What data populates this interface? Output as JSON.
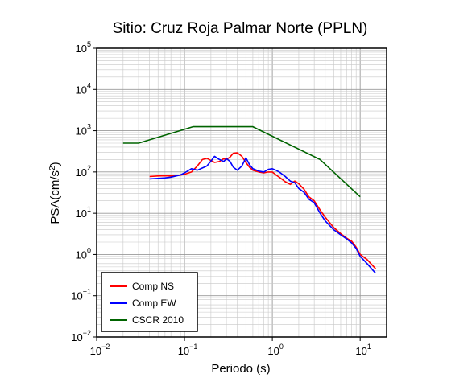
{
  "chart_data": {
    "type": "line",
    "title": "Sitio: Cruz Roja Palmar Norte (PPLN)",
    "xlabel": "Periodo (s)",
    "ylabel_base": "PSA(cm/s",
    "ylabel_sup": "2",
    "ylabel_close": ")",
    "x_scale": "log",
    "y_scale": "log",
    "xlim": [
      0.01,
      20
    ],
    "ylim": [
      0.01,
      100000
    ],
    "grid": true,
    "legend_position": "bottom-left",
    "x_ticks": [
      {
        "base": "10",
        "exp": "−2",
        "value": 0.01
      },
      {
        "base": "10",
        "exp": "−1",
        "value": 0.1
      },
      {
        "base": "10",
        "exp": "0",
        "value": 1
      },
      {
        "base": "10",
        "exp": "1",
        "value": 10
      }
    ],
    "y_ticks": [
      {
        "base": "10",
        "exp": "−2",
        "value": 0.01
      },
      {
        "base": "10",
        "exp": "−1",
        "value": 0.1
      },
      {
        "base": "10",
        "exp": "0",
        "value": 1
      },
      {
        "base": "10",
        "exp": "1",
        "value": 10
      },
      {
        "base": "10",
        "exp": "2",
        "value": 100
      },
      {
        "base": "10",
        "exp": "3",
        "value": 1000
      },
      {
        "base": "10",
        "exp": "4",
        "value": 10000
      },
      {
        "base": "10",
        "exp": "5",
        "value": 100000
      }
    ],
    "series": [
      {
        "name": "Comp NS",
        "color": "#ff0000",
        "x": [
          0.04,
          0.05,
          0.06,
          0.07,
          0.08,
          0.09,
          0.1,
          0.12,
          0.14,
          0.16,
          0.18,
          0.2,
          0.22,
          0.25,
          0.28,
          0.3,
          0.33,
          0.36,
          0.4,
          0.45,
          0.5,
          0.55,
          0.6,
          0.7,
          0.8,
          0.9,
          1.0,
          1.1,
          1.2,
          1.4,
          1.6,
          1.8,
          2.0,
          2.3,
          2.6,
          3.0,
          3.5,
          4.0,
          5.0,
          6.0,
          7.0,
          8.0,
          9.0,
          10.0,
          12.0,
          15.0
        ],
        "y": [
          78,
          80,
          81,
          80,
          82,
          84,
          88,
          100,
          140,
          200,
          215,
          190,
          170,
          180,
          210,
          200,
          230,
          285,
          290,
          240,
          170,
          130,
          110,
          100,
          95,
          100,
          100,
          85,
          75,
          58,
          50,
          60,
          52,
          38,
          25,
          20,
          12,
          8,
          4.5,
          3.2,
          2.5,
          2.1,
          1.5,
          1.0,
          0.75,
          0.45
        ]
      },
      {
        "name": "Comp EW",
        "color": "#0000ff",
        "x": [
          0.04,
          0.05,
          0.06,
          0.07,
          0.08,
          0.09,
          0.1,
          0.12,
          0.14,
          0.16,
          0.18,
          0.2,
          0.22,
          0.25,
          0.28,
          0.3,
          0.33,
          0.36,
          0.4,
          0.45,
          0.5,
          0.55,
          0.6,
          0.7,
          0.8,
          0.9,
          1.0,
          1.1,
          1.2,
          1.4,
          1.6,
          1.8,
          2.0,
          2.3,
          2.6,
          3.0,
          3.5,
          4.0,
          5.0,
          6.0,
          7.0,
          8.0,
          9.0,
          10.0,
          12.0,
          15.0
        ],
        "y": [
          68,
          70,
          72,
          75,
          80,
          85,
          95,
          120,
          110,
          125,
          140,
          185,
          240,
          200,
          180,
          210,
          180,
          130,
          110,
          140,
          220,
          150,
          120,
          105,
          100,
          115,
          120,
          110,
          100,
          78,
          60,
          55,
          40,
          32,
          22,
          18,
          10,
          6.5,
          4.0,
          3.0,
          2.4,
          1.9,
          1.4,
          0.9,
          0.6,
          0.35
        ]
      },
      {
        "name": "CSCR 2010",
        "color": "#006400",
        "x": [
          0.02,
          0.03,
          0.125,
          0.6,
          3.5,
          10.0
        ],
        "y": [
          500,
          500,
          1250,
          1250,
          200,
          25
        ]
      }
    ]
  }
}
